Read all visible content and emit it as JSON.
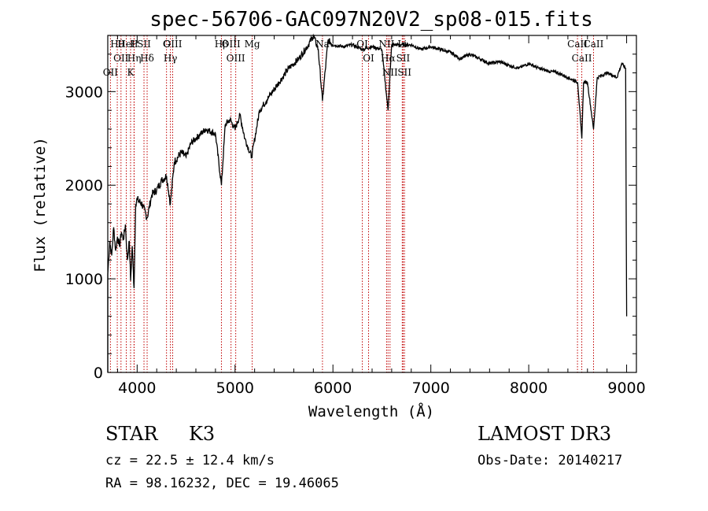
{
  "chart_data": {
    "type": "line",
    "title": "spec-56706-GAC097N20V2_sp08-015.fits",
    "xlabel": "Wavelength (Å)",
    "ylabel": "Flux (relative)",
    "xlim": [
      3700,
      9100
    ],
    "ylim": [
      0,
      3600
    ],
    "x_ticks": [
      4000,
      5000,
      6000,
      7000,
      8000,
      9000
    ],
    "y_ticks": [
      0,
      1000,
      2000,
      3000
    ],
    "series": [
      {
        "name": "spectrum",
        "x": [
          3700,
          3720,
          3740,
          3760,
          3780,
          3800,
          3820,
          3840,
          3860,
          3880,
          3900,
          3920,
          3933,
          3950,
          3968,
          3985,
          4000,
          4050,
          4102,
          4150,
          4200,
          4250,
          4300,
          4340,
          4380,
          4450,
          4500,
          4550,
          4600,
          4700,
          4800,
          4861,
          4900,
          4950,
          5000,
          5050,
          5100,
          5170,
          5250,
          5350,
          5450,
          5550,
          5650,
          5750,
          5800,
          5850,
          5893,
          5950,
          6000,
          6100,
          6200,
          6300,
          6400,
          6500,
          6563,
          6600,
          6700,
          6800,
          6900,
          7000,
          7100,
          7200,
          7300,
          7400,
          7500,
          7600,
          7700,
          7800,
          7900,
          8000,
          8100,
          8200,
          8300,
          8400,
          8500,
          8542,
          8560,
          8600,
          8662,
          8700,
          8800,
          8850,
          8900,
          8950,
          8990,
          9000
        ],
        "y": [
          1050,
          1400,
          1250,
          1550,
          1300,
          1450,
          1350,
          1500,
          1420,
          1580,
          1200,
          1400,
          980,
          1350,
          900,
          1800,
          1850,
          1800,
          1650,
          1900,
          1950,
          2050,
          2100,
          1800,
          2250,
          2350,
          2300,
          2450,
          2500,
          2600,
          2550,
          2000,
          2650,
          2700,
          2600,
          2750,
          2500,
          2300,
          2800,
          2950,
          3100,
          3250,
          3350,
          3500,
          3600,
          3450,
          2900,
          3550,
          3500,
          3480,
          3500,
          3450,
          3480,
          3450,
          2800,
          3500,
          3500,
          3500,
          3450,
          3480,
          3450,
          3420,
          3350,
          3400,
          3350,
          3300,
          3320,
          3280,
          3250,
          3300,
          3250,
          3220,
          3200,
          3150,
          3100,
          2500,
          3100,
          3100,
          2600,
          3150,
          3200,
          3180,
          3150,
          3300,
          3250,
          600
        ]
      }
    ],
    "lines": [
      {
        "wl": 3797,
        "label": "Hθ"
      },
      {
        "wl": 3835,
        "label": "OII"
      },
      {
        "wl": 3727,
        "label": "OII"
      },
      {
        "wl": 3889,
        "label": "HeI"
      },
      {
        "wl": 3970,
        "label": "Hη"
      },
      {
        "wl": 3933,
        "label": "K"
      },
      {
        "wl": 3968,
        "label": "H"
      },
      {
        "wl": 4070,
        "label": "SII"
      },
      {
        "wl": 4102,
        "label": "Hδ"
      },
      {
        "wl": 4300,
        "label": "G"
      },
      {
        "wl": 4340,
        "label": "Hγ"
      },
      {
        "wl": 4363,
        "label": "OIII"
      },
      {
        "wl": 4861,
        "label": "Hβ"
      },
      {
        "wl": 4959,
        "label": "OIII"
      },
      {
        "wl": 5007,
        "label": "OIII"
      },
      {
        "wl": 5175,
        "label": "Mg"
      },
      {
        "wl": 5893,
        "label": "Na"
      },
      {
        "wl": 6300,
        "label": "OI"
      },
      {
        "wl": 6364,
        "label": "OI"
      },
      {
        "wl": 6548,
        "label": "NII"
      },
      {
        "wl": 6563,
        "label": "Hα"
      },
      {
        "wl": 6583,
        "label": "NII"
      },
      {
        "wl": 6708,
        "label": "Li"
      },
      {
        "wl": 6717,
        "label": "SII"
      },
      {
        "wl": 6731,
        "label": "SII"
      },
      {
        "wl": 8498,
        "label": "CaII"
      },
      {
        "wl": 8542,
        "label": "CaII"
      },
      {
        "wl": 8662,
        "label": "CaII"
      }
    ],
    "grid": false,
    "legend": "none"
  },
  "footer": {
    "class_label": "STAR",
    "subclass": "K3",
    "survey": "LAMOST DR3",
    "cz": "cz = 22.5 ± 12.4 km/s",
    "obs_date": "Obs-Date: 20140217",
    "radec": "RA =  98.16232, DEC =  19.46065"
  }
}
